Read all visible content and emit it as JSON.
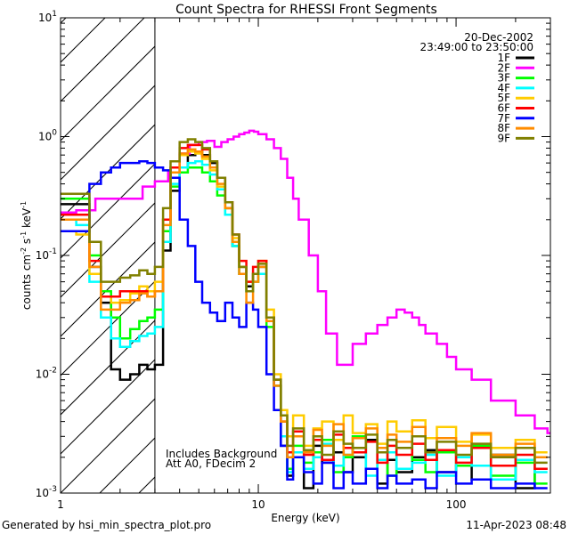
{
  "chart_data": {
    "type": "line",
    "title": "Count Spectra for RHESSI Front Segments",
    "xlabel": "Energy (keV)",
    "ylabel_main": "counts cm",
    "ylabel_sup1": "-2",
    "ylabel_mid": " s",
    "ylabel_sup2": "-1",
    "ylabel_end": " keV",
    "ylabel_sup3": "-1",
    "xscale": "log",
    "yscale": "log",
    "xlim": [
      1,
      300
    ],
    "ylim": [
      0.001,
      10
    ],
    "x_ticks": [
      {
        "value": 1,
        "label": "1"
      },
      {
        "value": 10,
        "label": "10"
      },
      {
        "value": 100,
        "label": "100"
      }
    ],
    "y_ticks": [
      {
        "value": 0.001,
        "base": "10",
        "exp": "-3"
      },
      {
        "value": 0.01,
        "base": "10",
        "exp": "-2"
      },
      {
        "value": 0.1,
        "base": "10",
        "exp": "-1"
      },
      {
        "value": 1,
        "base": "10",
        "exp": "0"
      },
      {
        "value": 10,
        "base": "10",
        "exp": "1"
      }
    ],
    "hatched_region_max_kev": 3,
    "date": "20-Dec-2002",
    "time_range": "23:49:00 to 23:50:00",
    "annotations": [
      "Includes Background",
      "Att A0, FDecim 2"
    ],
    "series": [
      {
        "name": "1F",
        "color": "#000000",
        "x": [
          1,
          1.2,
          1.4,
          1.6,
          1.8,
          2,
          2.25,
          2.5,
          2.75,
          3,
          3.3,
          3.6,
          4,
          4.4,
          4.8,
          5.2,
          5.7,
          6.2,
          6.8,
          7.4,
          8,
          8.7,
          9.4,
          10,
          11,
          12,
          13,
          14,
          15,
          17,
          19,
          21,
          24,
          27,
          30,
          35,
          40,
          45,
          50,
          60,
          70,
          80,
          100,
          120,
          150,
          200,
          250
        ],
        "y": [
          0.27,
          0.27,
          0.08,
          0.04,
          0.011,
          0.009,
          0.01,
          0.012,
          0.011,
          0.012,
          0.11,
          0.35,
          0.55,
          0.7,
          0.75,
          0.7,
          0.6,
          0.45,
          0.25,
          0.12,
          0.08,
          0.055,
          0.07,
          0.08,
          0.03,
          0.008,
          0.0025,
          0.0014,
          0.002,
          0.0011,
          0.0025,
          0.0018,
          0.0022,
          0.0015,
          0.002,
          0.0028,
          0.0012,
          0.0019,
          0.0015,
          0.002,
          0.0023,
          0.0015,
          0.0017,
          0.0013,
          0.0021,
          0.0011,
          0.0016
        ]
      },
      {
        "name": "2F",
        "color": "#ff00ff",
        "x": [
          1,
          1.2,
          1.5,
          1.8,
          2.2,
          2.6,
          3,
          3.5,
          4,
          4.5,
          5,
          5.5,
          6,
          6.5,
          7,
          7.5,
          8,
          8.5,
          9,
          9.5,
          10,
          11,
          12,
          13,
          14,
          15,
          16,
          18,
          20,
          22,
          25,
          30,
          35,
          40,
          45,
          50,
          55,
          60,
          65,
          70,
          80,
          90,
          100,
          120,
          150,
          200,
          250,
          290
        ],
        "y": [
          0.23,
          0.24,
          0.3,
          0.3,
          0.3,
          0.38,
          0.42,
          0.5,
          0.72,
          0.85,
          0.9,
          0.92,
          0.82,
          0.9,
          0.95,
          1.0,
          1.05,
          1.08,
          1.12,
          1.1,
          1.05,
          0.95,
          0.8,
          0.65,
          0.45,
          0.3,
          0.2,
          0.1,
          0.05,
          0.022,
          0.012,
          0.018,
          0.022,
          0.026,
          0.03,
          0.035,
          0.033,
          0.03,
          0.026,
          0.022,
          0.018,
          0.014,
          0.011,
          0.009,
          0.006,
          0.0045,
          0.0035,
          0.0032
        ]
      },
      {
        "name": "3F",
        "color": "#00ff00",
        "x": [
          1,
          1.2,
          1.4,
          1.6,
          1.8,
          2,
          2.25,
          2.5,
          2.75,
          3,
          3.3,
          3.6,
          4,
          4.4,
          4.8,
          5.2,
          5.7,
          6.2,
          6.8,
          7.4,
          8,
          8.7,
          9.4,
          10,
          11,
          12,
          13,
          14,
          15,
          17,
          19,
          21,
          24,
          27,
          30,
          35,
          40,
          45,
          50,
          60,
          70,
          80,
          100,
          120,
          150,
          200,
          250
        ],
        "y": [
          0.3,
          0.3,
          0.1,
          0.05,
          0.03,
          0.02,
          0.024,
          0.028,
          0.03,
          0.035,
          0.16,
          0.38,
          0.5,
          0.55,
          0.55,
          0.5,
          0.42,
          0.32,
          0.22,
          0.12,
          0.07,
          0.05,
          0.06,
          0.07,
          0.025,
          0.008,
          0.003,
          0.0016,
          0.0025,
          0.0018,
          0.0022,
          0.0028,
          0.0015,
          0.002,
          0.003,
          0.0016,
          0.0022,
          0.0014,
          0.0024,
          0.0019,
          0.0015,
          0.0022,
          0.0017,
          0.0025,
          0.0014,
          0.0018,
          0.0012
        ]
      },
      {
        "name": "4F",
        "color": "#00ffff",
        "x": [
          1,
          1.2,
          1.4,
          1.6,
          1.8,
          2,
          2.25,
          2.5,
          2.75,
          3,
          3.3,
          3.6,
          4,
          4.4,
          4.8,
          5.2,
          5.7,
          6.2,
          6.8,
          7.4,
          8,
          8.7,
          9.4,
          10,
          11,
          12,
          13,
          14,
          15,
          17,
          19,
          21,
          24,
          27,
          30,
          35,
          40,
          45,
          50,
          60,
          70,
          80,
          100,
          120,
          150,
          200,
          250
        ],
        "y": [
          0.2,
          0.18,
          0.06,
          0.03,
          0.02,
          0.017,
          0.019,
          0.021,
          0.022,
          0.025,
          0.13,
          0.4,
          0.55,
          0.6,
          0.62,
          0.58,
          0.48,
          0.36,
          0.22,
          0.12,
          0.07,
          0.05,
          0.06,
          0.07,
          0.03,
          0.009,
          0.003,
          0.0015,
          0.0022,
          0.0016,
          0.002,
          0.0026,
          0.0017,
          0.0021,
          0.0024,
          0.0014,
          0.0019,
          0.0022,
          0.0016,
          0.0018,
          0.0021,
          0.0014,
          0.002,
          0.0017,
          0.0013,
          0.0019,
          0.0015
        ]
      },
      {
        "name": "5F",
        "color": "#ffcc00",
        "x": [
          1,
          1.2,
          1.4,
          1.6,
          1.8,
          2,
          2.25,
          2.5,
          2.75,
          3,
          3.3,
          3.6,
          4,
          4.4,
          4.8,
          5.2,
          5.7,
          6.2,
          6.8,
          7.4,
          8,
          8.7,
          9.4,
          10,
          11,
          12,
          13,
          14,
          15,
          17,
          19,
          21,
          24,
          27,
          30,
          35,
          40,
          45,
          50,
          60,
          70,
          80,
          100,
          120,
          150,
          200,
          250
        ],
        "y": [
          0.16,
          0.15,
          0.07,
          0.045,
          0.04,
          0.042,
          0.048,
          0.055,
          0.05,
          0.06,
          0.2,
          0.5,
          0.7,
          0.75,
          0.72,
          0.65,
          0.52,
          0.38,
          0.25,
          0.14,
          0.08,
          0.06,
          0.07,
          0.09,
          0.035,
          0.01,
          0.005,
          0.003,
          0.0045,
          0.0025,
          0.0035,
          0.004,
          0.0028,
          0.0045,
          0.0032,
          0.0038,
          0.0026,
          0.004,
          0.0033,
          0.0041,
          0.0029,
          0.0036,
          0.0027,
          0.0031,
          0.0024,
          0.0028,
          0.0022
        ]
      },
      {
        "name": "6F",
        "color": "#ff0000",
        "x": [
          1,
          1.2,
          1.4,
          1.6,
          1.8,
          2,
          2.25,
          2.5,
          2.75,
          3,
          3.3,
          3.6,
          4,
          4.4,
          4.8,
          5.2,
          5.7,
          6.2,
          6.8,
          7.4,
          8,
          8.7,
          9.4,
          10,
          11,
          12,
          13,
          14,
          15,
          17,
          19,
          21,
          24,
          27,
          30,
          35,
          40,
          45,
          50,
          60,
          70,
          80,
          100,
          120,
          150,
          200,
          250
        ],
        "y": [
          0.22,
          0.22,
          0.09,
          0.045,
          0.045,
          0.05,
          0.05,
          0.05,
          0.045,
          0.05,
          0.2,
          0.55,
          0.8,
          0.85,
          0.85,
          0.78,
          0.62,
          0.45,
          0.28,
          0.15,
          0.09,
          0.06,
          0.08,
          0.09,
          0.03,
          0.009,
          0.004,
          0.0022,
          0.0033,
          0.0021,
          0.0028,
          0.0019,
          0.0031,
          0.0024,
          0.0022,
          0.0027,
          0.0018,
          0.0025,
          0.0021,
          0.0026,
          0.0019,
          0.0023,
          0.0018,
          0.0024,
          0.0017,
          0.0021,
          0.0016
        ]
      },
      {
        "name": "7F",
        "color": "#0000ff",
        "x": [
          1,
          1.2,
          1.4,
          1.6,
          1.8,
          2,
          2.25,
          2.5,
          2.75,
          3,
          3.3,
          3.6,
          4,
          4.4,
          4.8,
          5.2,
          5.7,
          6.2,
          6.8,
          7.4,
          8,
          8.7,
          9.4,
          10,
          11,
          12,
          13,
          14,
          15,
          17,
          19,
          21,
          24,
          27,
          30,
          35,
          40,
          45,
          50,
          60,
          70,
          80,
          100,
          120,
          150,
          200,
          250
        ],
        "y": [
          0.16,
          0.16,
          0.4,
          0.5,
          0.55,
          0.6,
          0.6,
          0.62,
          0.6,
          0.55,
          0.52,
          0.45,
          0.2,
          0.12,
          0.06,
          0.04,
          0.033,
          0.028,
          0.04,
          0.03,
          0.025,
          0.04,
          0.035,
          0.025,
          0.01,
          0.005,
          0.0025,
          0.0013,
          0.002,
          0.0015,
          0.0012,
          0.0018,
          0.0011,
          0.0015,
          0.0012,
          0.0016,
          0.0011,
          0.0014,
          0.0012,
          0.0013,
          0.0011,
          0.0015,
          0.0012,
          0.0013,
          0.0011,
          0.0012,
          0.0011
        ]
      },
      {
        "name": "8F",
        "color": "#ff8c00",
        "x": [
          1,
          1.2,
          1.4,
          1.6,
          1.8,
          2,
          2.25,
          2.5,
          2.75,
          3,
          3.3,
          3.6,
          4,
          4.4,
          4.8,
          5.2,
          5.7,
          6.2,
          6.8,
          7.4,
          8,
          8.7,
          9.4,
          10,
          11,
          12,
          13,
          14,
          15,
          17,
          19,
          21,
          24,
          27,
          30,
          35,
          40,
          45,
          50,
          60,
          70,
          80,
          100,
          120,
          150,
          200,
          250
        ],
        "y": [
          0.2,
          0.2,
          0.08,
          0.035,
          0.035,
          0.04,
          0.042,
          0.048,
          0.045,
          0.05,
          0.18,
          0.5,
          0.72,
          0.78,
          0.75,
          0.68,
          0.55,
          0.4,
          0.25,
          0.13,
          0.07,
          0.04,
          0.06,
          0.08,
          0.028,
          0.008,
          0.004,
          0.002,
          0.003,
          0.0022,
          0.0034,
          0.0025,
          0.0038,
          0.0021,
          0.0029,
          0.0035,
          0.0024,
          0.0031,
          0.0027,
          0.0036,
          0.0022,
          0.0029,
          0.0025,
          0.0032,
          0.0021,
          0.0026,
          0.002
        ]
      },
      {
        "name": "9F",
        "color": "#808000",
        "x": [
          1,
          1.2,
          1.4,
          1.6,
          1.8,
          2,
          2.25,
          2.5,
          2.75,
          3,
          3.3,
          3.6,
          4,
          4.4,
          4.8,
          5.2,
          5.7,
          6.2,
          6.8,
          7.4,
          8,
          8.7,
          9.4,
          10,
          11,
          12,
          13,
          14,
          15,
          17,
          19,
          21,
          24,
          27,
          30,
          35,
          40,
          45,
          50,
          60,
          70,
          80,
          100,
          120,
          150,
          200,
          250
        ],
        "y": [
          0.33,
          0.33,
          0.13,
          0.06,
          0.06,
          0.065,
          0.068,
          0.075,
          0.07,
          0.08,
          0.25,
          0.62,
          0.9,
          0.95,
          0.9,
          0.8,
          0.62,
          0.45,
          0.28,
          0.15,
          0.08,
          0.05,
          0.07,
          0.085,
          0.03,
          0.009,
          0.0045,
          0.0025,
          0.0035,
          0.0023,
          0.003,
          0.0021,
          0.0033,
          0.0026,
          0.0024,
          0.0031,
          0.0022,
          0.0028,
          0.0024,
          0.003,
          0.0022,
          0.0027,
          0.0021,
          0.0026,
          0.002,
          0.0024,
          0.0018
        ]
      }
    ]
  },
  "footer": {
    "left": "Generated by hsi_min_spectra_plot.pro",
    "right": "11-Apr-2023 08:48"
  }
}
